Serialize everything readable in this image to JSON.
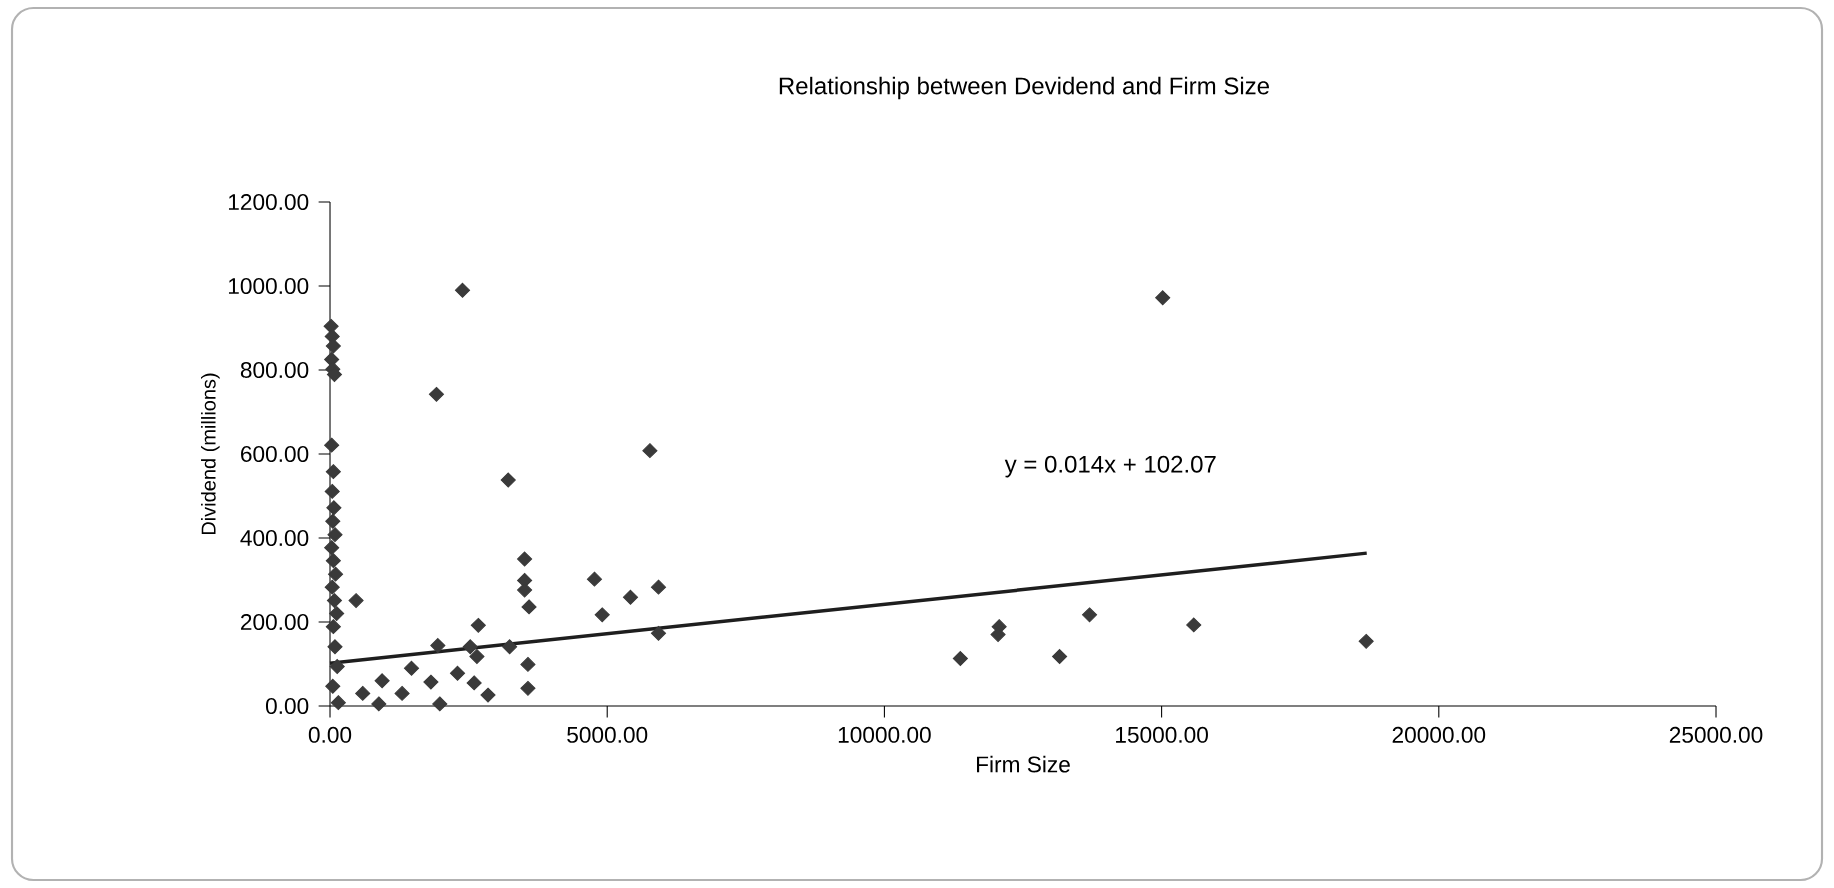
{
  "chart_data": {
    "type": "scatter",
    "title": "Relationship between Devidend and Firm Size",
    "xlabel": "Firm Size",
    "ylabel": "Dividend (millions)",
    "xlim": [
      0,
      25000
    ],
    "ylim": [
      0,
      1200
    ],
    "xticks": [
      {
        "value": 0,
        "label": "0.00"
      },
      {
        "value": 5000,
        "label": "5000.00"
      },
      {
        "value": 10000,
        "label": "10000.00"
      },
      {
        "value": 15000,
        "label": "15000.00"
      },
      {
        "value": 20000,
        "label": "20000.00"
      },
      {
        "value": 25000,
        "label": "25000.00"
      }
    ],
    "yticks": [
      {
        "value": 0,
        "label": "0.00"
      },
      {
        "value": 200,
        "label": "200.00"
      },
      {
        "value": 400,
        "label": "400.00"
      },
      {
        "value": 600,
        "label": "600.00"
      },
      {
        "value": 800,
        "label": "800.00"
      },
      {
        "value": 1000,
        "label": "1000.00"
      },
      {
        "value": 1200,
        "label": "1200.00"
      }
    ],
    "marker": "diamond",
    "annotations": [
      "y = 0.014x + 102.07"
    ],
    "series": [
      {
        "color": "#3a3a3a",
        "x": [
          20,
          40,
          60,
          30,
          50,
          80,
          30,
          60,
          40,
          70,
          50,
          90,
          30,
          60,
          100,
          40,
          80,
          120,
          60,
          90,
          130,
          50,
          150,
          2390,
          1920,
          5770,
          3215,
          3510,
          3510,
          3510,
          3590,
          4770,
          5420,
          5925,
          5925,
          4910,
          2675,
          470,
          3570,
          3570,
          2850,
          1945,
          2530,
          2650,
          2300,
          1820,
          1980,
          1300,
          940,
          590,
          880,
          1470,
          2600,
          3240,
          15020,
          11370,
          12070,
          12050,
          13160,
          13700,
          15580,
          18690
        ],
        "values": [
          904,
          880,
          857,
          825,
          802,
          789,
          621,
          558,
          511,
          472,
          440,
          408,
          377,
          346,
          314,
          283,
          251,
          220,
          189,
          141,
          94,
          47,
          8,
          990,
          742,
          608,
          538,
          350,
          299,
          276,
          236,
          302,
          259,
          283,
          173,
          217,
          192,
          251,
          99,
          42,
          26,
          144,
          141,
          118,
          78,
          57,
          5,
          30,
          60,
          30,
          5,
          90,
          55,
          141,
          972,
          113,
          189,
          170,
          118,
          217,
          193,
          154
        ]
      },
      {
        "type": "line",
        "color": "#1e1e1e",
        "marker": "none",
        "x": [
          0,
          18700
        ],
        "values": [
          102,
          364
        ]
      }
    ]
  }
}
